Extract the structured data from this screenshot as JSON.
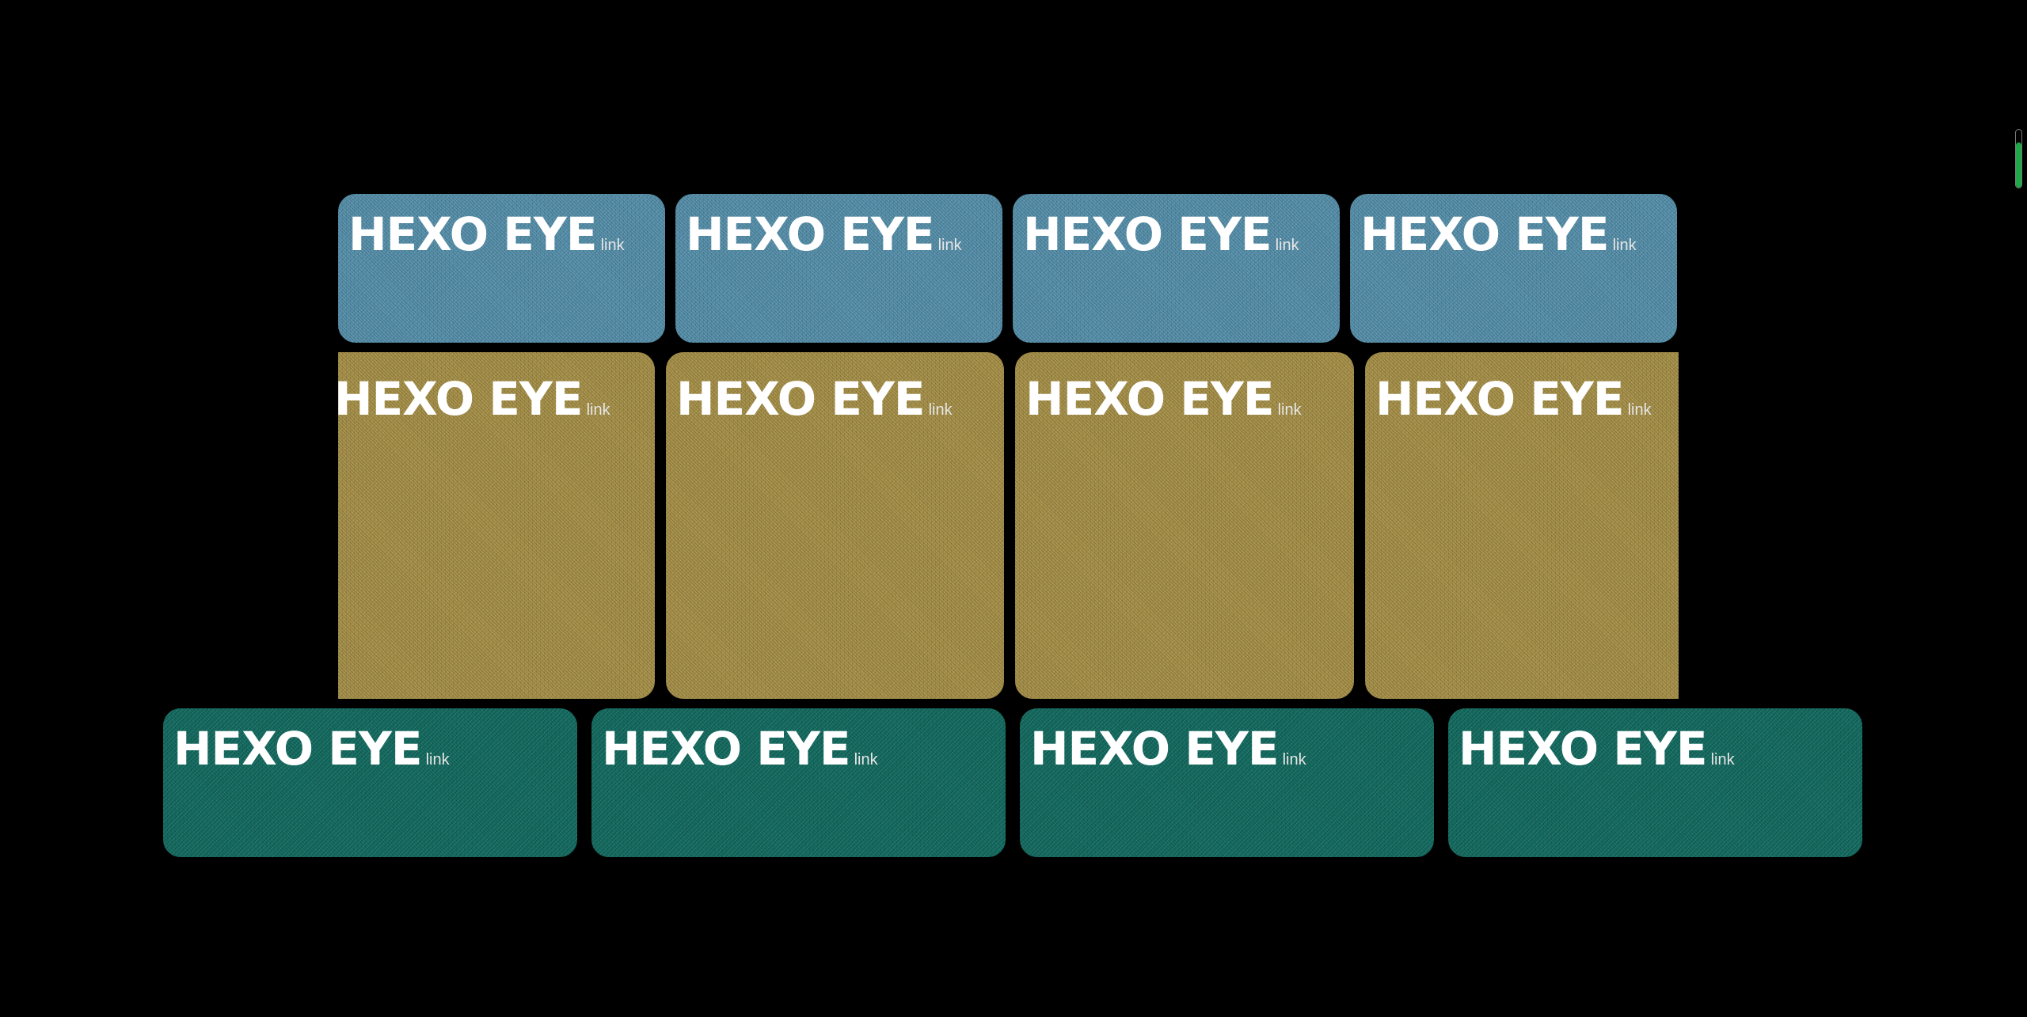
{
  "colors": {
    "background": "#000000",
    "blue_card": "#5690ab",
    "gold_card": "#a69048",
    "teal_card": "#136b60",
    "indicator_fill": "#1fa84a"
  },
  "rows": {
    "blue": [
      {
        "title": "HEXO EYE",
        "link": "link"
      },
      {
        "title": "HEXO EYE",
        "link": "link"
      },
      {
        "title": "HEXO EYE",
        "link": "link"
      },
      {
        "title": "HEXO EYE",
        "link": "link"
      }
    ],
    "gold": [
      {
        "title": "HEXO EYE",
        "link": "link"
      },
      {
        "title": "HEXO EYE",
        "link": "link"
      },
      {
        "title": "HEXO EYE",
        "link": "link"
      },
      {
        "title": "HEXO EYE",
        "link": "link"
      }
    ],
    "teal": [
      {
        "title": "HEXO EYE",
        "link": "link"
      },
      {
        "title": "HEXO EYE",
        "link": "link"
      },
      {
        "title": "HEXO EYE",
        "link": "link"
      },
      {
        "title": "HEXO EYE",
        "link": "link"
      }
    ]
  },
  "scroll_indicator": {
    "level": 0.78
  }
}
